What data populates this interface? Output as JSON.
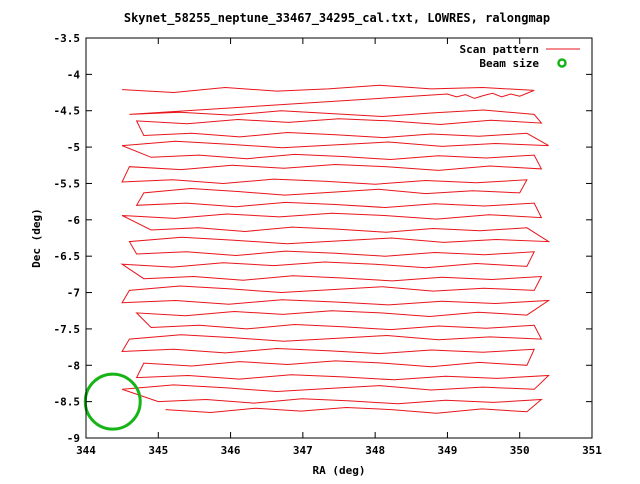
{
  "chart_data": {
    "type": "line",
    "title": "Skynet_58255_neptune_33467_34295_cal.txt, LOWRES, ralongmap",
    "xlabel": "RA (deg)",
    "ylabel": "Dec (deg)",
    "xlim": [
      344,
      351
    ],
    "ylim": [
      -9,
      -3.5
    ],
    "xticks": [
      344,
      345,
      346,
      347,
      348,
      349,
      350,
      351
    ],
    "xtick_labels": [
      "344",
      "345",
      "346",
      "347",
      "348",
      "349",
      "350",
      "351"
    ],
    "yticks": [
      -3.5,
      -4,
      -4.5,
      -5,
      -5.5,
      -6,
      -6.5,
      -7,
      -7.5,
      -8,
      -8.5,
      -9
    ],
    "ytick_labels": [
      "-3.5",
      "-4",
      "-4.5",
      "-5",
      "-5.5",
      "-6",
      "-6.5",
      "-7",
      "-7.5",
      "-8",
      "-8.5",
      "-9"
    ],
    "grid": false,
    "legend_position": "top-right",
    "series": [
      {
        "name": "Scan pattern",
        "color": "#e8151b",
        "rows": [
          [
            -4.21,
            -4.25,
            -4.18,
            -4.23,
            -4.2,
            -4.15,
            -4.2,
            -4.18,
            -4.22
          ],
          [
            -4.3,
            -4.27,
            -4.31,
            -4.26,
            -4.29,
            -4.33,
            -4.28,
            -4.31,
            -4.27
          ],
          [
            -4.55,
            -4.52,
            -4.56,
            -4.5,
            -4.54,
            -4.58,
            -4.53,
            -4.49,
            -4.55
          ],
          [
            -4.67,
            -4.63,
            -4.69,
            -4.64,
            -4.61,
            -4.66,
            -4.62,
            -4.68,
            -4.64
          ],
          [
            -4.84,
            -4.81,
            -4.86,
            -4.8,
            -4.83,
            -4.87,
            -4.82,
            -4.85,
            -4.81
          ],
          [
            -4.98,
            -4.95,
            -4.99,
            -4.93,
            -4.97,
            -5.01,
            -4.96,
            -4.92,
            -4.98
          ],
          [
            -5.14,
            -5.11,
            -5.16,
            -5.1,
            -5.13,
            -5.17,
            -5.12,
            -5.15,
            -5.11
          ],
          [
            -5.3,
            -5.26,
            -5.32,
            -5.27,
            -5.24,
            -5.29,
            -5.25,
            -5.31,
            -5.27
          ],
          [
            -5.48,
            -5.45,
            -5.5,
            -5.44,
            -5.47,
            -5.51,
            -5.46,
            -5.49,
            -5.45
          ],
          [
            -5.63,
            -5.6,
            -5.64,
            -5.58,
            -5.62,
            -5.66,
            -5.61,
            -5.57,
            -5.63
          ],
          [
            -5.8,
            -5.77,
            -5.82,
            -5.76,
            -5.79,
            -5.83,
            -5.78,
            -5.81,
            -5.77
          ],
          [
            -5.97,
            -5.93,
            -5.99,
            -5.94,
            -5.91,
            -5.96,
            -5.92,
            -5.98,
            -5.94
          ],
          [
            -6.14,
            -6.11,
            -6.16,
            -6.1,
            -6.13,
            -6.17,
            -6.12,
            -6.15,
            -6.11
          ],
          [
            -6.3,
            -6.27,
            -6.31,
            -6.25,
            -6.29,
            -6.33,
            -6.28,
            -6.24,
            -6.3
          ],
          [
            -6.47,
            -6.44,
            -6.49,
            -6.43,
            -6.46,
            -6.5,
            -6.45,
            -6.48,
            -6.44
          ],
          [
            -6.64,
            -6.6,
            -6.66,
            -6.61,
            -6.58,
            -6.63,
            -6.59,
            -6.65,
            -6.61
          ],
          [
            -6.81,
            -6.78,
            -6.83,
            -6.77,
            -6.8,
            -6.84,
            -6.79,
            -6.82,
            -6.78
          ],
          [
            -6.97,
            -6.94,
            -6.98,
            -6.92,
            -6.96,
            -7,
            -6.95,
            -6.91,
            -6.97
          ],
          [
            -7.14,
            -7.11,
            -7.16,
            -7.1,
            -7.13,
            -7.17,
            -7.12,
            -7.15,
            -7.11
          ],
          [
            -7.31,
            -7.27,
            -7.33,
            -7.28,
            -7.25,
            -7.3,
            -7.26,
            -7.32,
            -7.28
          ],
          [
            -7.48,
            -7.45,
            -7.5,
            -7.44,
            -7.47,
            -7.51,
            -7.46,
            -7.49,
            -7.45
          ],
          [
            -7.64,
            -7.61,
            -7.65,
            -7.59,
            -7.63,
            -7.67,
            -7.62,
            -7.58,
            -7.64
          ],
          [
            -7.81,
            -7.78,
            -7.83,
            -7.77,
            -7.8,
            -7.84,
            -7.79,
            -7.82,
            -7.78
          ],
          [
            -8.0,
            -7.96,
            -8.02,
            -7.97,
            -7.94,
            -7.99,
            -7.95,
            -8.01,
            -7.97
          ],
          [
            -8.17,
            -8.14,
            -8.19,
            -8.13,
            -8.16,
            -8.2,
            -8.15,
            -8.18,
            -8.14
          ],
          [
            -8.33,
            -8.3,
            -8.34,
            -8.28,
            -8.32,
            -8.36,
            -8.31,
            -8.27,
            -8.33
          ],
          [
            -8.5,
            -8.47,
            -8.52,
            -8.46,
            -8.49,
            -8.53,
            -8.48,
            -8.51,
            -8.47
          ],
          [
            -8.64,
            -8.6,
            -8.66,
            -8.61,
            -8.58,
            -8.63,
            -8.59,
            -8.65,
            -8.61
          ]
        ],
        "x_start": [
          344.5,
          349.0,
          344.6,
          344.7,
          344.8,
          344.5,
          344.9,
          344.6,
          344.5,
          344.8,
          344.7,
          344.5,
          344.9,
          344.6,
          344.7,
          344.5,
          344.8,
          344.6,
          344.5,
          344.7,
          344.9,
          344.6,
          344.5,
          344.8,
          344.7,
          344.5,
          345.0,
          345.1
        ],
        "x_end": [
          350.2,
          350.0,
          350.2,
          350.3,
          350.1,
          350.4,
          350.2,
          350.3,
          350.1,
          350.0,
          350.2,
          350.3,
          350.1,
          350.4,
          350.2,
          350.1,
          350.3,
          350.2,
          350.4,
          350.1,
          350.2,
          350.3,
          350.2,
          350.1,
          350.4,
          350.2,
          350.3,
          350.1
        ]
      },
      {
        "name": "Beam size",
        "color": "#17b417",
        "center": [
          344.37,
          -8.5
        ],
        "diameter_ra_deg": 0.76
      }
    ]
  }
}
